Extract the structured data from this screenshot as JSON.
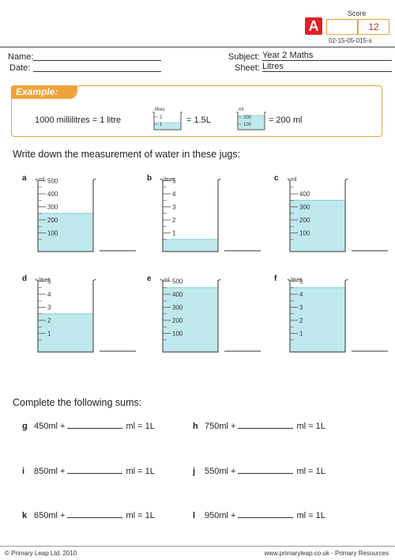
{
  "header": {
    "logo_letter": "A",
    "score_label": "Score",
    "score_value": "12",
    "sheet_code": "02-15-05-015-s"
  },
  "fields": {
    "name_label": "Name:",
    "date_label": "Date:",
    "subject_label": "Subject:",
    "subject_value": "Year 2 Maths",
    "sheet_label": "Sheet:",
    "sheet_value": "Litres"
  },
  "example": {
    "tab": "Example:",
    "statement": "1000 millilitres = 1 litre",
    "jug1": {
      "unit": "litres",
      "ticks": [
        "2",
        "1"
      ],
      "level": 1.5,
      "max": 2,
      "answer": "= 1.5L"
    },
    "jug2": {
      "unit": "ml",
      "ticks": [
        "200",
        "100"
      ],
      "level": 200,
      "max": 200,
      "answer": "= 200 ml"
    }
  },
  "question1": "Write down the measurement of water in these jugs:",
  "jugs": [
    {
      "letter": "a",
      "unit": "ml",
      "ticks": [
        "500",
        "400",
        "300",
        "200",
        "100"
      ],
      "max": 500,
      "level": 250
    },
    {
      "letter": "b",
      "unit": "litres",
      "ticks": [
        "5",
        "4",
        "3",
        "2",
        "1"
      ],
      "max": 5,
      "level": 0.5
    },
    {
      "letter": "c",
      "unit": "ml",
      "ticks": [
        "400",
        "300",
        "200",
        "100"
      ],
      "max": 400,
      "level": 350,
      "partial": true
    },
    {
      "letter": "d",
      "unit": "litres",
      "ticks": [
        "5",
        "4",
        "3",
        "2",
        "1"
      ],
      "max": 5,
      "level": 2.5
    },
    {
      "letter": "e",
      "unit": "ml",
      "ticks": [
        "500",
        "400",
        "300",
        "200",
        "100"
      ],
      "max": 500,
      "level": 450
    },
    {
      "letter": "f",
      "unit": "litres",
      "ticks": [
        "5",
        "4",
        "3",
        "2",
        "1"
      ],
      "max": 5,
      "level": 4.5
    }
  ],
  "question2": "Complete the following sums:",
  "sums": [
    {
      "letter": "g",
      "left": "450ml +",
      "right": "ml = 1L"
    },
    {
      "letter": "h",
      "left": "750ml +",
      "right": "ml = 1L"
    },
    {
      "letter": "i",
      "left": "850ml +",
      "right": "ml = 1L"
    },
    {
      "letter": "j",
      "left": "550ml +",
      "right": "ml = 1L"
    },
    {
      "letter": "k",
      "left": "650ml +",
      "right": "ml = 1L"
    },
    {
      "letter": "l",
      "left": "950ml +",
      "right": "ml = 1L"
    }
  ],
  "footer": {
    "left": "© Primary Leap Ltd. 2010",
    "right": "www.primaryleap.co.uk  -  Primary Resources"
  },
  "colors": {
    "water": "#bfe9ec",
    "water_top": "#7fd0d6",
    "accent": "#f0a23a",
    "logo": "#e31e24"
  }
}
